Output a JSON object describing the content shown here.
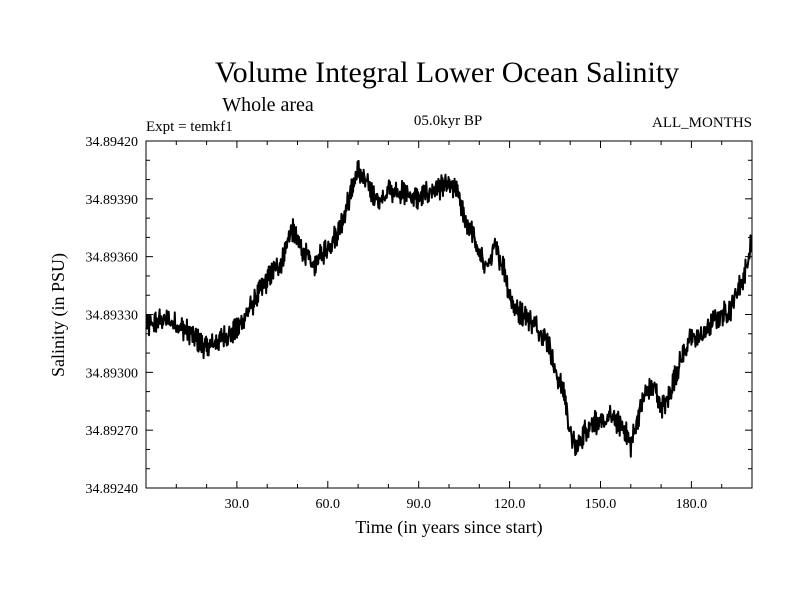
{
  "chart_data": {
    "type": "line",
    "title": "Volume Integral Lower Ocean Salinity",
    "subtitle": "Whole area",
    "experiment": "Expt = temkf1",
    "period": "05.0kyr BP",
    "months": "ALL_MONTHS",
    "xlabel": "Time (in years since start)",
    "ylabel": "Salinity (in PSU)",
    "xlim": [
      0,
      200
    ],
    "ylim": [
      34.8924,
      34.8942
    ],
    "xticks": [
      30,
      60,
      90,
      120,
      150,
      180
    ],
    "xtick_labels": [
      "30.0",
      "60.0",
      "90.0",
      "120.0",
      "150.0",
      "180.0"
    ],
    "yticks": [
      34.8924,
      34.8927,
      34.893,
      34.8933,
      34.8936,
      34.8939,
      34.8942
    ],
    "ytick_labels": [
      "34.89240",
      "34.89270",
      "34.89300",
      "34.89330",
      "34.89360",
      "34.89390",
      "34.89420"
    ],
    "grid": false,
    "series": [
      {
        "name": "Salinity",
        "color": "#000000",
        "x": [
          0,
          5,
          10,
          15,
          20,
          25,
          30,
          35,
          40,
          45,
          48,
          50,
          55,
          60,
          63,
          65,
          68,
          70,
          72,
          75,
          78,
          80,
          85,
          90,
          95,
          100,
          103,
          105,
          108,
          110,
          113,
          115,
          118,
          120,
          122,
          125,
          128,
          130,
          133,
          135,
          138,
          140,
          142,
          145,
          148,
          150,
          153,
          155,
          158,
          160,
          162,
          165,
          168,
          170,
          172,
          175,
          178,
          180,
          183,
          185,
          188,
          190,
          193,
          195,
          197,
          199,
          200
        ],
        "values": [
          34.89323,
          34.89328,
          34.89325,
          34.8932,
          34.89312,
          34.89318,
          34.89322,
          34.89335,
          34.89348,
          34.89358,
          34.89375,
          34.89368,
          34.89355,
          34.89365,
          34.89372,
          34.8938,
          34.89395,
          34.89405,
          34.894,
          34.89392,
          34.89388,
          34.89395,
          34.89393,
          34.8939,
          34.89395,
          34.89397,
          34.89393,
          34.8938,
          34.89372,
          34.8936,
          34.89355,
          34.89365,
          34.89355,
          34.8934,
          34.89332,
          34.8933,
          34.89325,
          34.89322,
          34.89315,
          34.893,
          34.8929,
          34.89268,
          34.8926,
          34.8927,
          34.89275,
          34.89272,
          34.89277,
          34.89275,
          34.8927,
          34.89262,
          34.89275,
          34.8929,
          34.89292,
          34.89282,
          34.89285,
          34.893,
          34.89312,
          34.89318,
          34.89318,
          34.89322,
          34.89328,
          34.8933,
          34.89333,
          34.89342,
          34.89348,
          34.8936,
          34.8937
        ]
      }
    ]
  }
}
